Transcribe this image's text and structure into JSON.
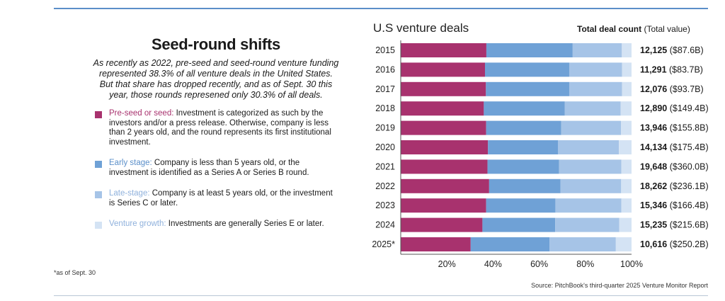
{
  "left": {
    "title": "Seed-round shifts",
    "subtitle": "As recently as 2022, pre-seed and seed-round venture funding represented 38.3% of all venture deals in the United States. But that share has dropped recently, and as of Sept. 30 this year, those rounds represened only 30.3% of all deals.",
    "legend": [
      {
        "term": "Pre-seed or seed:",
        "desc": " Investment is categorized as such by the investors and/or a press release. Otherwise, company is less than 2 years old, and the round represents its first institutional investment.",
        "color": "#a8326e"
      },
      {
        "term": "Early stage:",
        "desc": " Company is less than 5 years old, or the investment is identified as a Series A or Series B round.",
        "color": "#6fa1d6"
      },
      {
        "term": "Late-stage:",
        "desc": " Company is at least 5 years old, or the investment is Series C or later.",
        "color": "#a6c4e7"
      },
      {
        "term": "Venture growth:",
        "desc": " Investments are generally Series E or later.",
        "color": "#d4e3f4"
      }
    ]
  },
  "footnote": "*as of Sept. 30",
  "source": "Source: PitchBook's third-quarter 2025 Venture Monitor Report",
  "chart_data": {
    "type": "bar",
    "orientation": "horizontal",
    "stacked": true,
    "title": "U.S venture deals",
    "totals_header_bold": "Total deal count",
    "totals_header_value": "(Total value)",
    "categories": [
      "2015",
      "2016",
      "2017",
      "2018",
      "2019",
      "2020",
      "2021",
      "2022",
      "2023",
      "2024",
      "2025*"
    ],
    "series": [
      {
        "name": "Pre-seed or seed",
        "color": "#a8326e",
        "values": [
          37.1,
          36.5,
          36.9,
          36.0,
          37.0,
          37.8,
          37.6,
          38.3,
          37.0,
          35.4,
          30.3
        ]
      },
      {
        "name": "Early stage",
        "color": "#6fa1d6",
        "values": [
          37.4,
          36.5,
          36.1,
          35.1,
          32.5,
          30.3,
          31.0,
          30.9,
          30.0,
          31.5,
          34.2
        ]
      },
      {
        "name": "Late-stage",
        "color": "#a6c4e7",
        "values": [
          21.3,
          22.9,
          22.9,
          24.2,
          25.9,
          26.4,
          27.0,
          26.3,
          28.6,
          27.8,
          28.7
        ]
      },
      {
        "name": "Venture growth",
        "color": "#d4e3f4",
        "values": [
          4.2,
          4.1,
          4.1,
          4.7,
          4.6,
          5.5,
          4.4,
          4.5,
          4.4,
          5.3,
          6.8
        ]
      }
    ],
    "totals": [
      {
        "count": "12,125",
        "value": "($87.6B)"
      },
      {
        "count": "11,291",
        "value": "($83.7B)"
      },
      {
        "count": "12,076",
        "value": "($93.7B)"
      },
      {
        "count": "12,890",
        "value": "($149.4B)"
      },
      {
        "count": "13,946",
        "value": "($155.8B)"
      },
      {
        "count": "14,134",
        "value": "($175.4B)"
      },
      {
        "count": "19,648",
        "value": "($360.0B)"
      },
      {
        "count": "18,262",
        "value": "($236.1B)"
      },
      {
        "count": "15,346",
        "value": "($166.4B)"
      },
      {
        "count": "15,235",
        "value": "($215.6B)"
      },
      {
        "count": "10,616",
        "value": "($250.2B)"
      }
    ],
    "xlim": [
      0,
      100
    ],
    "xticks": [
      "20%",
      "40%",
      "60%",
      "80%",
      "100%"
    ],
    "xtick_values": [
      20,
      40,
      60,
      80,
      100
    ],
    "grid": false
  }
}
